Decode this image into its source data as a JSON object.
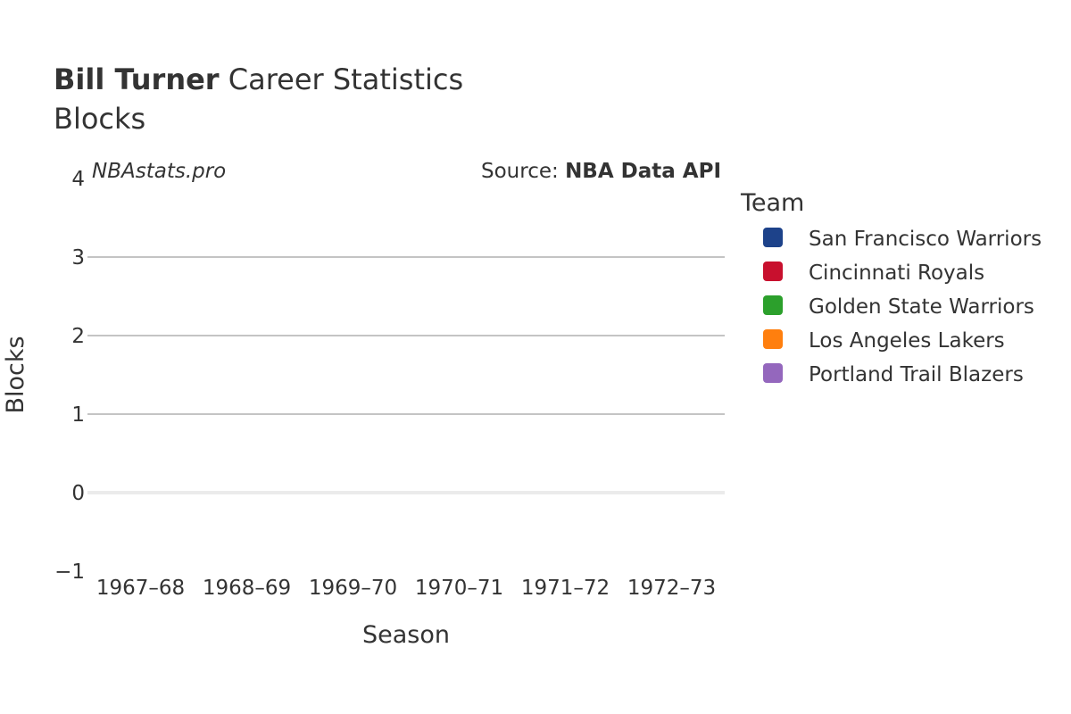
{
  "header": {
    "player_name": "Bill Turner",
    "title_rest": " Career Statistics",
    "subtitle": "Blocks"
  },
  "watermark": "NBAstats.pro",
  "source": {
    "prefix": "Source: ",
    "name": "NBA Data API"
  },
  "legend_title": "Team",
  "chart_data": {
    "type": "bar",
    "title": "Bill Turner Career Statistics",
    "subtitle": "Blocks",
    "xlabel": "Season",
    "ylabel": "Blocks",
    "categories": [
      "1967–68",
      "1968–69",
      "1969–70",
      "1970–71",
      "1971–72",
      "1972–73"
    ],
    "ylim": [
      -1,
      4
    ],
    "yticks": [
      4,
      3,
      2,
      1,
      0,
      -1
    ],
    "ytick_labels": [
      "4",
      "3",
      "2",
      "1",
      "0",
      "−1"
    ],
    "grid": true,
    "legend_position": "right",
    "series": [
      {
        "name": "San Francisco Warriors",
        "color": "#1d428a",
        "values": [
          null,
          null,
          null,
          null,
          null,
          null
        ]
      },
      {
        "name": "Cincinnati Royals",
        "color": "#c8102e",
        "values": [
          null,
          null,
          null,
          null,
          null,
          null
        ]
      },
      {
        "name": "Golden State Warriors",
        "color": "#2ca02c",
        "values": [
          null,
          null,
          null,
          null,
          null,
          null
        ]
      },
      {
        "name": "Los Angeles Lakers",
        "color": "#ff7f0e",
        "values": [
          null,
          null,
          null,
          null,
          null,
          null
        ]
      },
      {
        "name": "Portland Trail Blazers",
        "color": "#9467bd",
        "values": [
          null,
          null,
          null,
          null,
          null,
          null
        ]
      }
    ]
  }
}
